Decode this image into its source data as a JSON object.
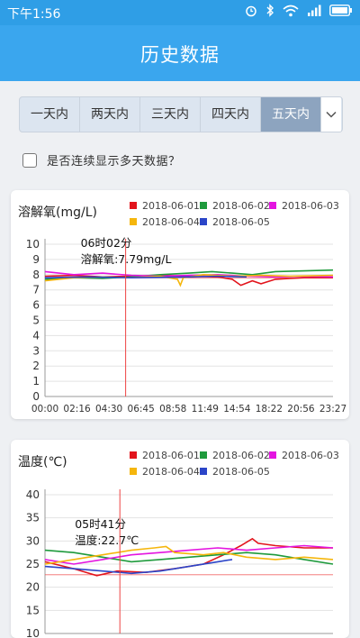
{
  "status_bar": {
    "time": "下午1:56",
    "icons": [
      "alarm-icon",
      "bluetooth-icon",
      "wifi-icon",
      "signal-icon",
      "battery-icon"
    ]
  },
  "app_bar": {
    "title": "历史数据"
  },
  "range_tabs": {
    "items": [
      "一天内",
      "两天内",
      "三天内",
      "四天内",
      "五天内"
    ],
    "selected": "五天内"
  },
  "continuous_option": {
    "label": "是否连续显示多天数据？",
    "checked": false
  },
  "colors": {
    "header": "#3aa6ee",
    "tab_active": "#8da4bf",
    "series": [
      "#e2141c",
      "#1e9a3c",
      "#e414e0",
      "#f5b60c",
      "#2b45c8"
    ],
    "cursor": "#ee4444"
  },
  "chart_data": [
    {
      "type": "line",
      "title": "溶解氧(mg/L)",
      "series_names": [
        "2018-06-01",
        "2018-06-02",
        "2018-06-03",
        "2018-06-04",
        "2018-06-05"
      ],
      "x_ticks": [
        "00:00",
        "02:16",
        "04:30",
        "06:45",
        "08:58",
        "11:49",
        "14:54",
        "18:22",
        "20:56",
        "23:27"
      ],
      "ylim": [
        0,
        10
      ],
      "y_ticks": [
        0,
        1,
        2,
        3,
        4,
        5,
        6,
        7,
        8,
        9,
        10
      ],
      "grid": "horizontal",
      "legend_position": "top-right",
      "reference_line": 7.79,
      "cursor": {
        "x_label": "06时02分",
        "value_label": "溶解氧:7.79mg/L",
        "x_fraction": 0.28
      },
      "series": [
        {
          "name": "2018-06-01",
          "points": [
            [
              0,
              7.9
            ],
            [
              0.1,
              7.95
            ],
            [
              0.2,
              7.85
            ],
            [
              0.3,
              7.9
            ],
            [
              0.4,
              7.95
            ],
            [
              0.5,
              7.9
            ],
            [
              0.6,
              7.85
            ],
            [
              0.65,
              7.7
            ],
            [
              0.68,
              7.3
            ],
            [
              0.72,
              7.6
            ],
            [
              0.75,
              7.4
            ],
            [
              0.8,
              7.7
            ],
            [
              0.85,
              7.75
            ],
            [
              0.9,
              7.8
            ],
            [
              1.0,
              7.8
            ]
          ]
        },
        {
          "name": "2018-06-02",
          "points": [
            [
              0,
              7.7
            ],
            [
              0.1,
              7.8
            ],
            [
              0.2,
              7.75
            ],
            [
              0.3,
              7.85
            ],
            [
              0.4,
              8.0
            ],
            [
              0.5,
              8.1
            ],
            [
              0.58,
              8.2
            ],
            [
              0.65,
              8.1
            ],
            [
              0.72,
              8.0
            ],
            [
              0.8,
              8.2
            ],
            [
              0.9,
              8.25
            ],
            [
              1.0,
              8.3
            ]
          ]
        },
        {
          "name": "2018-06-03",
          "points": [
            [
              0,
              8.2
            ],
            [
              0.1,
              8.0
            ],
            [
              0.2,
              8.1
            ],
            [
              0.3,
              7.95
            ],
            [
              0.4,
              7.9
            ],
            [
              0.5,
              7.95
            ],
            [
              0.6,
              8.0
            ],
            [
              0.7,
              7.9
            ],
            [
              0.8,
              7.85
            ],
            [
              0.9,
              7.9
            ],
            [
              1.0,
              7.85
            ]
          ]
        },
        {
          "name": "2018-06-04",
          "points": [
            [
              0,
              7.6
            ],
            [
              0.1,
              7.8
            ],
            [
              0.2,
              7.85
            ],
            [
              0.3,
              7.8
            ],
            [
              0.4,
              7.9
            ],
            [
              0.46,
              7.7
            ],
            [
              0.47,
              7.3
            ],
            [
              0.48,
              7.8
            ],
            [
              0.55,
              8.0
            ],
            [
              0.65,
              7.9
            ],
            [
              0.75,
              7.95
            ],
            [
              0.85,
              7.9
            ],
            [
              1.0,
              7.95
            ]
          ]
        },
        {
          "name": "2018-06-05",
          "points": [
            [
              0,
              7.8
            ],
            [
              0.15,
              7.85
            ],
            [
              0.3,
              7.8
            ],
            [
              0.5,
              7.85
            ],
            [
              0.6,
              7.9
            ],
            [
              0.7,
              7.85
            ]
          ]
        }
      ]
    },
    {
      "type": "line",
      "title": "温度(℃)",
      "series_names": [
        "2018-06-01",
        "2018-06-02",
        "2018-06-03",
        "2018-06-04",
        "2018-06-05"
      ],
      "ylim": [
        10,
        40
      ],
      "y_ticks": [
        10,
        15,
        20,
        25,
        30,
        35,
        40
      ],
      "grid": "horizontal",
      "legend_position": "top-right",
      "reference_line": 22.7,
      "cursor": {
        "x_label": "05时41分",
        "value_label": "温度:22.7℃",
        "x_fraction": 0.26
      },
      "series": [
        {
          "name": "2018-06-01",
          "points": [
            [
              0,
              25.5
            ],
            [
              0.1,
              24
            ],
            [
              0.18,
              22.5
            ],
            [
              0.25,
              23.5
            ],
            [
              0.35,
              23.2
            ],
            [
              0.45,
              24
            ],
            [
              0.55,
              25
            ],
            [
              0.62,
              27
            ],
            [
              0.68,
              29
            ],
            [
              0.72,
              30.5
            ],
            [
              0.74,
              29.5
            ],
            [
              0.8,
              29
            ],
            [
              0.9,
              28.5
            ],
            [
              1.0,
              28.5
            ]
          ]
        },
        {
          "name": "2018-06-02",
          "points": [
            [
              0,
              28
            ],
            [
              0.1,
              27.5
            ],
            [
              0.2,
              26.5
            ],
            [
              0.3,
              25.5
            ],
            [
              0.4,
              26
            ],
            [
              0.5,
              26.5
            ],
            [
              0.6,
              27
            ],
            [
              0.7,
              27.5
            ],
            [
              0.8,
              27
            ],
            [
              0.9,
              26
            ],
            [
              1.0,
              25
            ]
          ]
        },
        {
          "name": "2018-06-03",
          "points": [
            [
              0,
              26
            ],
            [
              0.1,
              25
            ],
            [
              0.2,
              26
            ],
            [
              0.3,
              27
            ],
            [
              0.4,
              27.5
            ],
            [
              0.5,
              28
            ],
            [
              0.6,
              28.5
            ],
            [
              0.7,
              28
            ],
            [
              0.8,
              28.5
            ],
            [
              0.9,
              29
            ],
            [
              1.0,
              28.5
            ]
          ]
        },
        {
          "name": "2018-06-04",
          "points": [
            [
              0,
              25
            ],
            [
              0.1,
              26
            ],
            [
              0.2,
              27
            ],
            [
              0.3,
              28
            ],
            [
              0.38,
              28.5
            ],
            [
              0.42,
              28.8
            ],
            [
              0.45,
              27.5
            ],
            [
              0.55,
              27
            ],
            [
              0.62,
              27.5
            ],
            [
              0.7,
              26.5
            ],
            [
              0.8,
              26
            ],
            [
              0.9,
              26.5
            ],
            [
              1.0,
              26
            ]
          ]
        },
        {
          "name": "2018-06-05",
          "points": [
            [
              0,
              24.5
            ],
            [
              0.1,
              24
            ],
            [
              0.2,
              23.5
            ],
            [
              0.3,
              23
            ],
            [
              0.4,
              23.5
            ],
            [
              0.5,
              24.5
            ],
            [
              0.6,
              25.5
            ],
            [
              0.65,
              26
            ]
          ]
        }
      ]
    }
  ]
}
